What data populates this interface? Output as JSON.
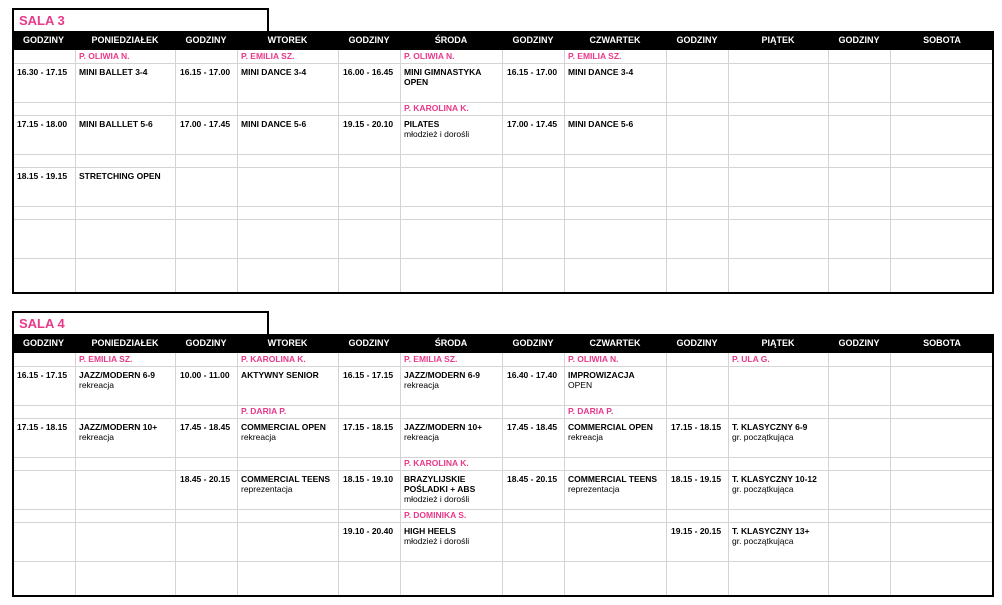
{
  "sections": [
    {
      "title": "SALA 3",
      "headers": [
        "GODZINY",
        "PONIEDZIAŁEK",
        "GODZINY",
        "WTOREK",
        "GODZINY",
        "ŚRODA",
        "GODZINY",
        "CZWARTEK",
        "GODZINY",
        "PIĄTEK",
        "GODZINY",
        "SOBOTA"
      ],
      "slots": [
        {
          "days": [
            {
              "teacher": "P. OLIWIA N.",
              "time": "16.30 - 17.15",
              "name": "MINI BALLET 3-4"
            },
            {
              "teacher": "P. EMILIA SZ.",
              "time": "16.15 - 17.00",
              "name": "MINI DANCE 3-4"
            },
            {
              "teacher": "P. OLIWIA N.",
              "time": "16.00 - 16.45",
              "name": "MINI GIMNASTYKA OPEN"
            },
            {
              "teacher": "P. EMILIA SZ.",
              "time": "16.15 - 17.00",
              "name": "MINI DANCE 3-4"
            },
            null,
            null
          ]
        },
        {
          "days": [
            {
              "time": "17.15 - 18.00",
              "name": "MINI BALLLET 5-6"
            },
            {
              "time": "17.00 - 17.45",
              "name": "MINI DANCE 5-6"
            },
            {
              "teacher": "P. KAROLINA K.",
              "time": "19.15 - 20.10",
              "name": "PILATES",
              "note": "młodzież i dorośli"
            },
            {
              "time": "17.00 - 17.45",
              "name": "MINI DANCE 5-6"
            },
            null,
            null
          ]
        },
        {
          "days": [
            {
              "time": "18.15 - 19.15",
              "name": "STRETCHING OPEN"
            },
            null,
            null,
            null,
            null,
            null
          ]
        },
        {
          "days": [
            null,
            null,
            null,
            null,
            null,
            null
          ]
        },
        {
          "days": [
            null,
            null,
            null,
            null,
            null,
            null
          ]
        }
      ]
    },
    {
      "title": "SALA 4",
      "headers": [
        "GODZINY",
        "PONIEDZIAŁEK",
        "GODZINY",
        "WTOREK",
        "GODZINY",
        "ŚRODA",
        "GODZINY",
        "CZWARTEK",
        "GODZINY",
        "PIĄTEK",
        "GODZINY",
        "SOBOTA"
      ],
      "slots": [
        {
          "days": [
            {
              "teacher": "P. EMILIA SZ.",
              "time": "16.15 - 17.15",
              "name": "JAZZ/MODERN 6-9",
              "note": "rekreacja"
            },
            {
              "teacher": "P. KAROLINA K.",
              "time": "10.00 - 11.00",
              "name": "AKTYWNY SENIOR"
            },
            {
              "teacher": "P. EMILIA SZ.",
              "time": "16.15 - 17.15",
              "name": "JAZZ/MODERN 6-9",
              "note": "rekreacja"
            },
            {
              "teacher": "P. OLIWIA N.",
              "time": "16.40 - 17.40",
              "name": "IMPROWIZACJA",
              "note": "OPEN"
            },
            {
              "teacher": "P. ULA G."
            },
            null
          ]
        },
        {
          "days": [
            {
              "time": "17.15 - 18.15",
              "name": "JAZZ/MODERN 10+",
              "note": "rekreacja"
            },
            {
              "teacher": "P. DARIA P.",
              "time": "17.45 - 18.45",
              "name": "COMMERCIAL OPEN",
              "note": "rekreacja"
            },
            {
              "time": "17.15 - 18.15",
              "name": "JAZZ/MODERN 10+",
              "note": "rekreacja"
            },
            {
              "teacher": "P. DARIA P.",
              "time": "17.45 - 18.45",
              "name": "COMMERCIAL OPEN",
              "note": "rekreacja"
            },
            {
              "time": "17.15 - 18.15",
              "name": "T. KLASYCZNY 6-9",
              "note": "gr. początkująca"
            },
            null
          ]
        },
        {
          "days": [
            null,
            {
              "time": "18.45 - 20.15",
              "name": "COMMERCIAL TEENS",
              "note": "reprezentacja"
            },
            {
              "teacher": "P. KAROLINA K.",
              "time": "18.15 - 19.10",
              "name": "BRAZYLIJSKIE POŚLADKI + ABS",
              "note": "młodzież i dorośli"
            },
            {
              "time": "18.45 - 20.15",
              "name": "COMMERCIAL TEENS",
              "note": "reprezentacja"
            },
            {
              "time": "18.15 - 19.15",
              "name": "T. KLASYCZNY 10-12",
              "note": "gr. początkująca"
            },
            null
          ]
        },
        {
          "days": [
            null,
            null,
            {
              "teacher": "P. DOMINIKA S.",
              "time": "19.10 - 20.40",
              "name": "HIGH HEELS",
              "note": "młodzież i dorośli"
            },
            null,
            {
              "time": "19.15 - 20.15",
              "name": "T. KLASYCZNY 13+",
              "note": "gr. początkująca"
            },
            null
          ]
        },
        {
          "days": [
            null,
            null,
            null,
            null,
            null,
            null
          ]
        }
      ]
    }
  ]
}
